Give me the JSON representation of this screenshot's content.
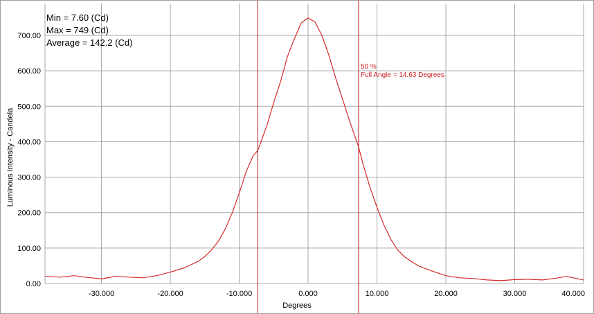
{
  "stats": {
    "min": "Min = 7.60 (Cd)",
    "max": "Max = 749 (Cd)",
    "average": "Average = 142.2 (Cd)"
  },
  "annotation": {
    "percent": "50 %",
    "full_angle": "Full Angle = 14.63 Degrees"
  },
  "colors": {
    "curve": "#d42a2a",
    "marker": "#b81414",
    "grid": "#a8a8a8",
    "axis_text": "#000000"
  },
  "chart_data": {
    "type": "line",
    "xlabel": "Degrees",
    "ylabel": "Luminous Intensity - Candela",
    "xlim": [
      -38.2,
      40.0
    ],
    "ylim": [
      0,
      790
    ],
    "x_ticks": [
      -30,
      -20,
      -10,
      0,
      10,
      20,
      30,
      40
    ],
    "x_tick_labels": [
      "-30.000",
      "-20.000",
      "-10.000",
      "0.000",
      "10.000",
      "20.000",
      "30.000",
      "40.000"
    ],
    "y_ticks": [
      0,
      100,
      200,
      300,
      400,
      500,
      600,
      700
    ],
    "y_tick_labels": [
      "0.00",
      "100.00",
      "200.00",
      "300.00",
      "400.00",
      "500.00",
      "600.00",
      "700.00"
    ],
    "grid": true,
    "half_max_markers_x": [
      -7.3,
      7.33
    ],
    "series": [
      {
        "x": [
          -38.2,
          -36.0,
          -34.0,
          -32.0,
          -30.0,
          -28.0,
          -26.0,
          -24.0,
          -22.0,
          -20.0,
          -18.0,
          -16.0,
          -15.0,
          -14.0,
          -13.0,
          -12.0,
          -11.0,
          -10.0,
          -9.0,
          -8.0,
          -7.3,
          -6.0,
          -5.0,
          -4.0,
          -3.0,
          -2.0,
          -1.0,
          0.0,
          1.0,
          2.0,
          3.0,
          4.0,
          5.0,
          6.0,
          7.33,
          8.0,
          9.0,
          10.0,
          11.0,
          12.0,
          13.0,
          14.0,
          15.0,
          16.0,
          18.0,
          20.0,
          22.0,
          24.0,
          26.0,
          28.0,
          30.0,
          32.0,
          34.0,
          36.0,
          37.5,
          39.0,
          40.0
        ],
        "y": [
          20,
          18,
          22,
          17,
          13,
          20,
          18,
          16,
          22,
          32,
          44,
          62,
          76,
          95,
          120,
          155,
          200,
          255,
          315,
          360,
          375,
          445,
          510,
          570,
          640,
          690,
          735,
          749,
          738,
          700,
          645,
          580,
          520,
          460,
          385,
          335,
          270,
          215,
          165,
          125,
          95,
          75,
          62,
          50,
          35,
          22,
          16,
          14,
          10,
          8,
          11,
          12,
          10,
          15,
          20,
          14,
          10
        ]
      }
    ]
  }
}
